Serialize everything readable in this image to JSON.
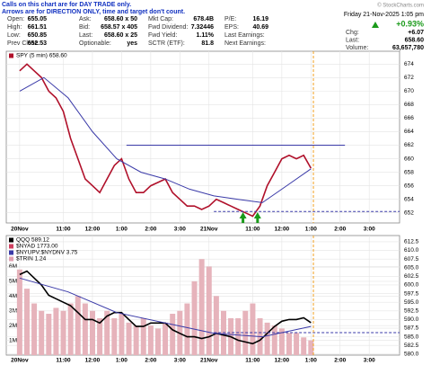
{
  "quote": {
    "note": [
      "Calls on this chart are for DAY TRADE only.",
      "Arrows are for DIRECTION ONLY, time and target don't count."
    ],
    "watermark": "© StockCharts.com",
    "rows": [
      [
        {
          "label": "Open:",
          "value": "655.05"
        },
        {
          "label": "Ask:",
          "value": "658.60 x 50"
        },
        {
          "label": "Mkt Cap:",
          "value": "678.4B"
        },
        {
          "label": "P/E:",
          "value": "16.19"
        }
      ],
      [
        {
          "label": "High:",
          "value": "661.51"
        },
        {
          "label": "Bid:",
          "value": "658.57 x 405"
        },
        {
          "label": "Fwd Dividend:",
          "value": "7.32446"
        },
        {
          "label": "EPS:",
          "value": "40.69"
        }
      ],
      [
        {
          "label": "Low:",
          "value": "650.85"
        },
        {
          "label": "Last:",
          "value": "658.60 x 25"
        },
        {
          "label": "Fwd Yield:",
          "value": "1.11%"
        },
        {
          "label": "Last Earnings:"
        }
      ],
      [
        {
          "label": "Prev Close:",
          "value": "652.53"
        },
        {
          "label": "Optionable:",
          "value": "yes"
        },
        {
          "label": "SCTR (ETF):",
          "value": "81.8"
        },
        {
          "label": "Next Earnings:"
        }
      ]
    ],
    "datetime": "Friday 21-Nov-2025 1:05 pm",
    "change_pct": "+0.93%",
    "right": [
      {
        "label": "Chg:",
        "value": "+6.07"
      },
      {
        "label": "Last:",
        "value": "658.60"
      },
      {
        "label": "Volume:",
        "value": "63,657,780"
      }
    ]
  },
  "chart_data": [
    {
      "type": "line",
      "grid": true,
      "yaxis_side": "right",
      "xlim": [
        -5.5,
        156.5
      ],
      "ylim": [
        650.5,
        675.9
      ],
      "xticks": [
        {
          "value": 0,
          "label": "20Nov"
        },
        {
          "value": 18,
          "label": "11:00"
        },
        {
          "value": 30,
          "label": "12:00"
        },
        {
          "value": 42,
          "label": "1:00"
        },
        {
          "value": 54,
          "label": "2:00"
        },
        {
          "value": 66,
          "label": "3:00"
        },
        {
          "value": 78,
          "label": "21Nov"
        },
        {
          "value": 96,
          "label": "11:00"
        },
        {
          "value": 108,
          "label": "12:00"
        },
        {
          "value": 120,
          "label": "1:00"
        },
        {
          "value": 132,
          "label": "2:00"
        },
        {
          "value": 144,
          "label": "3:00"
        }
      ],
      "yticks": [
        652,
        654,
        656,
        658,
        660,
        662,
        664,
        666,
        668,
        670,
        672,
        674
      ],
      "series": [
        {
          "name": "SPY (5 min) 658.60",
          "color": "#b0102a",
          "kind": "line",
          "x": [
            0,
            3,
            6,
            9,
            12,
            15,
            18,
            21,
            24,
            27,
            30,
            33,
            36,
            39,
            42,
            45,
            48,
            51,
            54,
            57,
            60,
            63,
            66,
            69,
            72,
            75,
            78,
            81,
            84,
            87,
            90,
            93,
            96,
            99,
            102,
            105,
            108,
            111,
            114,
            117,
            120
          ],
          "values": [
            673,
            674,
            673,
            672,
            670,
            669,
            667,
            663,
            660,
            657,
            656,
            655,
            657,
            659,
            660,
            657,
            655,
            655,
            656,
            656.5,
            657,
            655,
            654,
            653,
            653,
            652.5,
            653,
            654,
            653.5,
            653,
            652.5,
            652,
            651.5,
            653,
            656,
            658,
            660,
            660.5,
            660,
            660.5,
            658.6
          ]
        },
        {
          "color": "#3a3aa8",
          "kind": "line",
          "x": [
            0,
            10,
            20,
            30,
            40,
            50,
            60,
            70,
            80,
            90,
            100,
            110,
            120
          ],
          "values": [
            670,
            672,
            669,
            664,
            660,
            658,
            657,
            655.5,
            654.5,
            654,
            653.5,
            656,
            658.5
          ]
        }
      ],
      "hlines": [
        {
          "value": 662,
          "from": 44,
          "to": 134,
          "color": "#3a3aa8",
          "dashed": false
        },
        {
          "value": 652.2,
          "from": 80,
          "to": 156.5,
          "color": "#3a3aa8",
          "dashed": true
        }
      ],
      "vline": {
        "value": 121,
        "color": "#f0a020"
      },
      "arrows": {
        "x": [
          92,
          98
        ],
        "color": "#1a9a1a"
      }
    },
    {
      "type": "line",
      "grid": true,
      "xlim": [
        -5.5,
        156.5
      ],
      "ylim": [
        0,
        8.1
      ],
      "y2lim": [
        579.7,
        614.3
      ],
      "xticks": [
        {
          "value": 0,
          "label": "20Nov"
        },
        {
          "value": 18,
          "label": "11:00"
        },
        {
          "value": 30,
          "label": "12:00"
        },
        {
          "value": 42,
          "label": "1:00"
        },
        {
          "value": 54,
          "label": "2:00"
        },
        {
          "value": 66,
          "label": "3:00"
        },
        {
          "value": 78,
          "label": "21Nov"
        },
        {
          "value": 96,
          "label": "11:00"
        },
        {
          "value": 108,
          "label": "12:00"
        },
        {
          "value": 120,
          "label": "1:00"
        },
        {
          "value": 132,
          "label": "2:00"
        },
        {
          "value": 144,
          "label": "3:00"
        }
      ],
      "yticks": [
        {
          "value": 1,
          "label": "1M"
        },
        {
          "value": 2,
          "label": "2M"
        },
        {
          "value": 3,
          "label": "3M"
        },
        {
          "value": 4,
          "label": "4M"
        },
        {
          "value": 5,
          "label": "5M"
        },
        {
          "value": 6,
          "label": "6M"
        }
      ],
      "y2ticks": [
        {
          "value": 580,
          "label": "580.0"
        },
        582.5,
        {
          "value": 585,
          "label": "585.0"
        },
        587.5,
        {
          "value": 590,
          "label": "590.0"
        },
        592.5,
        {
          "value": 595,
          "label": "595.0"
        },
        597.5,
        {
          "value": 600,
          "label": "600.0"
        },
        602.5,
        {
          "value": 605,
          "label": "605.0"
        },
        607.5,
        {
          "value": 610,
          "label": "610.0"
        },
        612.5
      ],
      "series": [
        {
          "color": "#e6b3bb",
          "kind": "bar",
          "x": [
            0,
            3,
            6,
            9,
            12,
            15,
            18,
            21,
            24,
            27,
            30,
            33,
            36,
            39,
            42,
            45,
            48,
            51,
            54,
            57,
            60,
            63,
            66,
            69,
            72,
            75,
            78,
            81,
            84,
            87,
            90,
            93,
            96,
            99,
            102,
            105,
            108,
            111,
            114,
            117,
            120
          ],
          "values": [
            5.8,
            4.5,
            3.5,
            3,
            2.8,
            3.2,
            3,
            3.5,
            4,
            3.5,
            3,
            2.5,
            3,
            2.5,
            2.8,
            2.2,
            2,
            2.5,
            2,
            1.8,
            2.2,
            2.8,
            3,
            3.5,
            5,
            6.5,
            6,
            4,
            3,
            2.5,
            2.5,
            3,
            3.5,
            2.5,
            2.2,
            2,
            1.8,
            1.5,
            1.5,
            1.2,
            1
          ]
        },
        {
          "name": "QQQ 589.12",
          "color": "#000000",
          "kind": "line",
          "axis": "y2",
          "x": [
            0,
            3,
            6,
            9,
            12,
            15,
            18,
            21,
            24,
            27,
            30,
            33,
            36,
            39,
            42,
            45,
            48,
            51,
            54,
            57,
            60,
            63,
            66,
            69,
            72,
            75,
            78,
            81,
            84,
            87,
            90,
            93,
            96,
            99,
            102,
            105,
            108,
            111,
            114,
            117,
            120
          ],
          "values": [
            603,
            604,
            602,
            600,
            597,
            596,
            595,
            594,
            592,
            590,
            590,
            589,
            591,
            592,
            592,
            590,
            588,
            588,
            589,
            589,
            589,
            587,
            586,
            585,
            585,
            584.5,
            585,
            586,
            585.5,
            585,
            584,
            583.5,
            583,
            584,
            586,
            588,
            589.5,
            590,
            590,
            590.5,
            589.1
          ]
        },
        {
          "color": "#3a3aa8",
          "kind": "line",
          "axis": "y2",
          "x": [
            0,
            20,
            40,
            60,
            80,
            100,
            120
          ],
          "values": [
            602,
            598,
            592,
            589,
            586,
            585,
            588
          ]
        }
      ],
      "legend": [
        {
          "name": "$NYAD 1773.00",
          "color": "#d04060"
        },
        {
          "name": "$NYUPV:$NYDNV 3.75",
          "color": "#3a3aa8"
        },
        {
          "name": "$TRIN 1.24",
          "color": "#e0a0b0"
        }
      ],
      "hlines": [
        {
          "value": 586.2,
          "axis": "y2",
          "from": 80,
          "to": 156.5,
          "color": "#3a3aa8",
          "dashed": true
        }
      ],
      "vline": {
        "value": 121,
        "color": "#f0a020"
      }
    }
  ]
}
